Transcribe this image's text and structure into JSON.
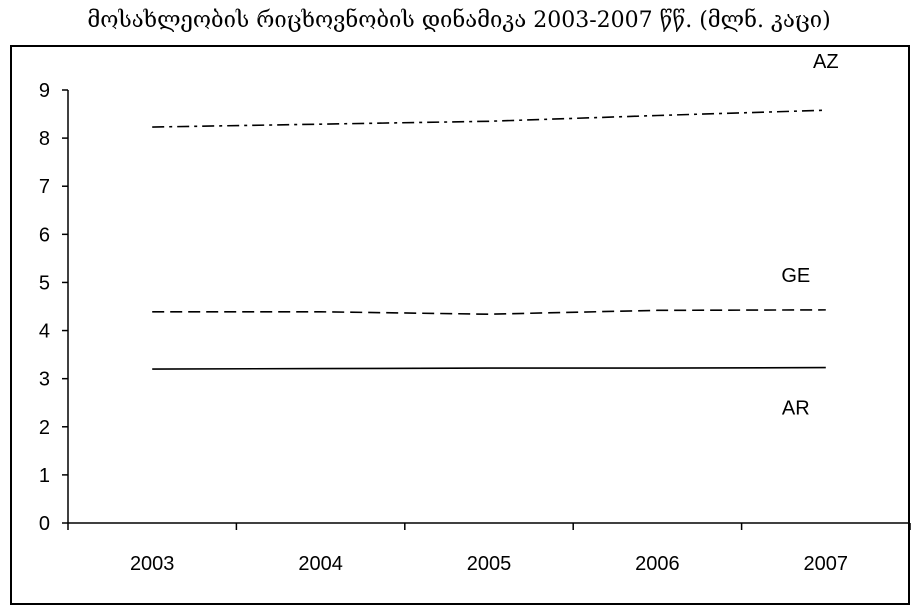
{
  "chart_data": {
    "type": "line",
    "title": "მოსახლეობის რიცხოვნობის დინამიკა 2003-2007 წწ. (მლნ. კაცი)",
    "categories": [
      "2003",
      "2004",
      "2005",
      "2006",
      "2007"
    ],
    "ylim": [
      0,
      9
    ],
    "yticks": [
      "0",
      "1",
      "2",
      "3",
      "4",
      "5",
      "6",
      "7",
      "8",
      "9"
    ],
    "grid": false,
    "series": [
      {
        "name": "AZ",
        "values": [
          8.23,
          8.29,
          8.35,
          8.47,
          8.58
        ],
        "dash": "dash-dot",
        "color": "#000000"
      },
      {
        "name": "GE",
        "values": [
          4.39,
          4.39,
          4.34,
          4.42,
          4.43
        ],
        "dash": "dashed",
        "color": "#000000"
      },
      {
        "name": "AR",
        "values": [
          3.2,
          3.21,
          3.22,
          3.22,
          3.23
        ],
        "dash": "solid",
        "color": "#000000"
      }
    ]
  }
}
